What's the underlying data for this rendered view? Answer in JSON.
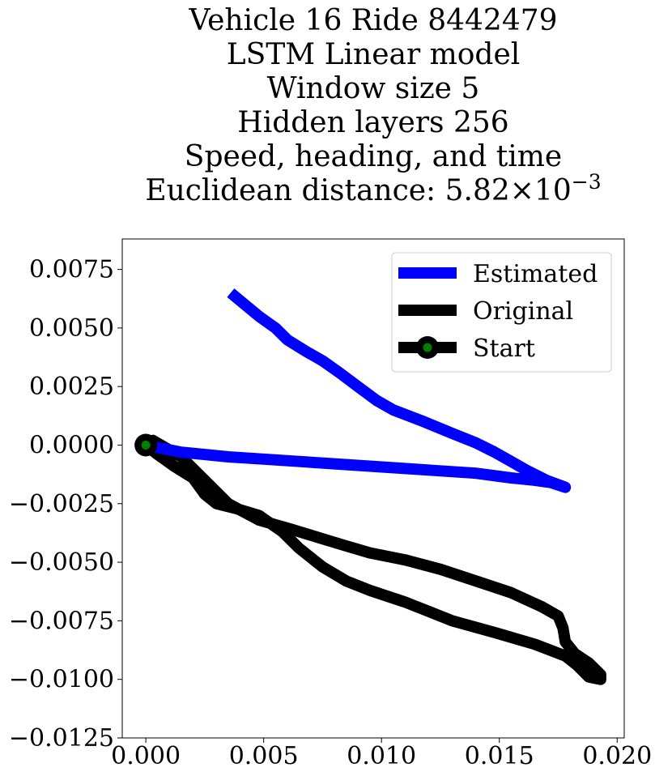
{
  "chart_data": {
    "type": "line",
    "title_lines": [
      "Vehicle 16 Ride 8442479",
      "LSTM Linear model",
      "Window size 5",
      "Hidden layers 256",
      "Speed, heading, and time"
    ],
    "title_metric_prefix": "Euclidean distance: ",
    "title_metric_mantissa": "5.82",
    "title_metric_times": "×",
    "title_metric_base": "10",
    "title_metric_exponent": "−3",
    "xlim": [
      -0.001,
      0.0203
    ],
    "ylim": [
      -0.0125,
      0.0088
    ],
    "x_ticks": [
      0.0,
      0.005,
      0.01,
      0.015,
      0.02
    ],
    "x_tick_labels": [
      "0.000",
      "0.005",
      "0.010",
      "0.015",
      "0.020"
    ],
    "y_ticks": [
      0.0075,
      0.005,
      0.0025,
      0.0,
      -0.0025,
      -0.005,
      -0.0075,
      -0.01,
      -0.0125
    ],
    "y_tick_labels": [
      "0.0075",
      "0.0050",
      "0.0025",
      "0.0000",
      "−0.0025",
      "−0.0050",
      "−0.0075",
      "−0.0100",
      "−0.0125"
    ],
    "grid": false,
    "legend_position": "top-right",
    "series": [
      {
        "name": "Estimated",
        "color": "#0000ff",
        "x": [
          0.0,
          0.0015,
          0.0035,
          0.005,
          0.0065,
          0.008,
          0.0095,
          0.011,
          0.0125,
          0.014,
          0.0155,
          0.0165,
          0.0172,
          0.0178,
          0.017,
          0.0162,
          0.0155,
          0.0148,
          0.014,
          0.013,
          0.0118,
          0.0105,
          0.0098,
          0.009,
          0.0082,
          0.0075,
          0.0068,
          0.006,
          0.0055,
          0.0048,
          0.0042,
          0.0036
        ],
        "y": [
          0.0,
          -0.0003,
          -0.0005,
          -0.0006,
          -0.0007,
          -0.0008,
          -0.0009,
          -0.001,
          -0.0011,
          -0.0012,
          -0.0014,
          -0.0015,
          -0.0016,
          -0.0018,
          -0.0015,
          -0.0011,
          -0.0007,
          -0.0003,
          0.0001,
          0.0005,
          0.001,
          0.0015,
          0.0019,
          0.0025,
          0.0031,
          0.0036,
          0.004,
          0.0045,
          0.005,
          0.0055,
          0.006,
          0.0065
        ]
      },
      {
        "name": "Original",
        "color": "#000000",
        "x": [
          0.0,
          0.0003,
          0.0015,
          0.0025,
          0.0035,
          0.0048,
          0.0062,
          0.0075,
          0.0085,
          0.0095,
          0.011,
          0.0125,
          0.014,
          0.0155,
          0.0168,
          0.0175,
          0.0177,
          0.0178,
          0.0182,
          0.0188,
          0.0193,
          0.0193,
          0.0188,
          0.0183,
          0.0178,
          0.0165,
          0.0148,
          0.013,
          0.012,
          0.011,
          0.0095,
          0.0085,
          0.0075,
          0.0065,
          0.0058,
          0.0048,
          0.0038,
          0.003,
          0.0025,
          0.002,
          0.0012,
          0.0005,
          0.0
        ],
        "y": [
          0.0,
          0.0002,
          -0.0005,
          -0.0015,
          -0.0025,
          -0.0032,
          -0.0036,
          -0.004,
          -0.0043,
          -0.0046,
          -0.0049,
          -0.0053,
          -0.0058,
          -0.0063,
          -0.0069,
          -0.0073,
          -0.0078,
          -0.0084,
          -0.0089,
          -0.0093,
          -0.0098,
          -0.01,
          -0.0099,
          -0.0094,
          -0.009,
          -0.0085,
          -0.008,
          -0.0075,
          -0.0071,
          -0.0067,
          -0.0062,
          -0.0058,
          -0.0052,
          -0.0044,
          -0.0037,
          -0.003,
          -0.0027,
          -0.0025,
          -0.0021,
          -0.0014,
          -0.0009,
          -0.0004,
          0.0
        ]
      }
    ],
    "start_marker": {
      "name": "Start",
      "x": 0.0,
      "y": 0.0,
      "outer_color": "#000000",
      "inner_color": "#008000"
    }
  }
}
